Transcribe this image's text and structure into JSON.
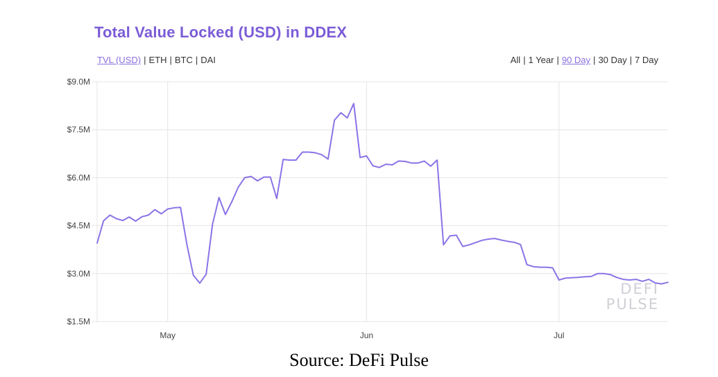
{
  "header": {
    "title": "Total Value Locked (USD) in DDEX",
    "metrics": [
      {
        "label": "TVL (USD)",
        "active": true
      },
      {
        "label": "ETH",
        "active": false
      },
      {
        "label": "BTC",
        "active": false
      },
      {
        "label": "DAI",
        "active": false
      }
    ],
    "ranges": [
      {
        "label": "All",
        "active": false
      },
      {
        "label": "1 Year",
        "active": false
      },
      {
        "label": "90 Day",
        "active": true
      },
      {
        "label": "30 Day",
        "active": false
      },
      {
        "label": "7 Day",
        "active": false
      }
    ]
  },
  "colors": {
    "line": "#8b73e6",
    "title": "#7b5cd6",
    "grid": "#e4e4e4",
    "watermark": "#cfcfd6"
  },
  "watermark": [
    "DEFI",
    "PULSE"
  ],
  "caption": "Source: DeFi Pulse",
  "chart_data": {
    "type": "line",
    "title": "Total Value Locked (USD) in DDEX",
    "xlabel": "",
    "ylabel": "",
    "grid": true,
    "ylim": [
      1.5,
      9.0
    ],
    "y_ticks": [
      {
        "value": 9.0,
        "label": "$9.0M"
      },
      {
        "value": 7.5,
        "label": "$7.5M"
      },
      {
        "value": 6.0,
        "label": "$6.0M"
      },
      {
        "value": 4.5,
        "label": "$4.5M"
      },
      {
        "value": 3.0,
        "label": "$3.0M"
      },
      {
        "value": 1.5,
        "label": "$1.5M"
      }
    ],
    "xlim": [
      "2019-04-20",
      "2019-07-18"
    ],
    "x_ticks": [
      {
        "value": "2019-05-01",
        "label": "May"
      },
      {
        "value": "2019-06-01",
        "label": "Jun"
      },
      {
        "value": "2019-07-01",
        "label": "Jul"
      }
    ],
    "series": [
      {
        "points": [
          [
            "2019-04-20",
            3.95
          ],
          [
            "2019-04-21",
            4.65
          ],
          [
            "2019-04-22",
            4.83
          ],
          [
            "2019-04-23",
            4.72
          ],
          [
            "2019-04-24",
            4.66
          ],
          [
            "2019-04-25",
            4.77
          ],
          [
            "2019-04-26",
            4.64
          ],
          [
            "2019-04-27",
            4.78
          ],
          [
            "2019-04-28",
            4.83
          ],
          [
            "2019-04-29",
            5.0
          ],
          [
            "2019-04-30",
            4.87
          ],
          [
            "2019-05-01",
            5.02
          ],
          [
            "2019-05-02",
            5.06
          ],
          [
            "2019-05-03",
            5.07
          ],
          [
            "2019-05-04",
            3.9
          ],
          [
            "2019-05-05",
            2.95
          ],
          [
            "2019-05-06",
            2.7
          ],
          [
            "2019-05-07",
            2.98
          ],
          [
            "2019-05-08",
            4.55
          ],
          [
            "2019-05-09",
            5.38
          ],
          [
            "2019-05-10",
            4.85
          ],
          [
            "2019-05-11",
            5.25
          ],
          [
            "2019-05-12",
            5.7
          ],
          [
            "2019-05-13",
            6.0
          ],
          [
            "2019-05-14",
            6.04
          ],
          [
            "2019-05-15",
            5.9
          ],
          [
            "2019-05-16",
            6.02
          ],
          [
            "2019-05-17",
            6.02
          ],
          [
            "2019-05-18",
            5.35
          ],
          [
            "2019-05-19",
            6.57
          ],
          [
            "2019-05-20",
            6.55
          ],
          [
            "2019-05-21",
            6.55
          ],
          [
            "2019-05-22",
            6.8
          ],
          [
            "2019-05-23",
            6.8
          ],
          [
            "2019-05-24",
            6.78
          ],
          [
            "2019-05-25",
            6.72
          ],
          [
            "2019-05-26",
            6.58
          ],
          [
            "2019-05-27",
            7.8
          ],
          [
            "2019-05-28",
            8.03
          ],
          [
            "2019-05-29",
            7.87
          ],
          [
            "2019-05-30",
            8.32
          ],
          [
            "2019-05-31",
            6.63
          ],
          [
            "2019-06-01",
            6.68
          ],
          [
            "2019-06-02",
            6.37
          ],
          [
            "2019-06-03",
            6.32
          ],
          [
            "2019-06-04",
            6.42
          ],
          [
            "2019-06-05",
            6.4
          ],
          [
            "2019-06-06",
            6.52
          ],
          [
            "2019-06-07",
            6.51
          ],
          [
            "2019-06-08",
            6.46
          ],
          [
            "2019-06-09",
            6.46
          ],
          [
            "2019-06-10",
            6.52
          ],
          [
            "2019-06-11",
            6.36
          ],
          [
            "2019-06-12",
            6.55
          ],
          [
            "2019-06-13",
            3.9
          ],
          [
            "2019-06-14",
            4.18
          ],
          [
            "2019-06-15",
            4.2
          ],
          [
            "2019-06-16",
            3.85
          ],
          [
            "2019-06-17",
            3.9
          ],
          [
            "2019-06-18",
            3.97
          ],
          [
            "2019-06-19",
            4.04
          ],
          [
            "2019-06-20",
            4.08
          ],
          [
            "2019-06-21",
            4.1
          ],
          [
            "2019-06-22",
            4.05
          ],
          [
            "2019-06-23",
            4.01
          ],
          [
            "2019-06-24",
            3.98
          ],
          [
            "2019-06-25",
            3.91
          ],
          [
            "2019-06-26",
            3.28
          ],
          [
            "2019-06-27",
            3.22
          ],
          [
            "2019-06-28",
            3.2
          ],
          [
            "2019-06-29",
            3.2
          ],
          [
            "2019-06-30",
            3.18
          ],
          [
            "2019-07-01",
            2.8
          ],
          [
            "2019-07-02",
            2.86
          ],
          [
            "2019-07-03",
            2.87
          ],
          [
            "2019-07-04",
            2.88
          ],
          [
            "2019-07-05",
            2.9
          ],
          [
            "2019-07-06",
            2.91
          ],
          [
            "2019-07-07",
            3.0
          ],
          [
            "2019-07-08",
            3.0
          ],
          [
            "2019-07-09",
            2.97
          ],
          [
            "2019-07-10",
            2.88
          ],
          [
            "2019-07-11",
            2.82
          ],
          [
            "2019-07-12",
            2.8
          ],
          [
            "2019-07-13",
            2.82
          ],
          [
            "2019-07-14",
            2.76
          ],
          [
            "2019-07-15",
            2.82
          ],
          [
            "2019-07-16",
            2.71
          ],
          [
            "2019-07-17",
            2.68
          ],
          [
            "2019-07-18",
            2.73
          ]
        ]
      }
    ]
  }
}
